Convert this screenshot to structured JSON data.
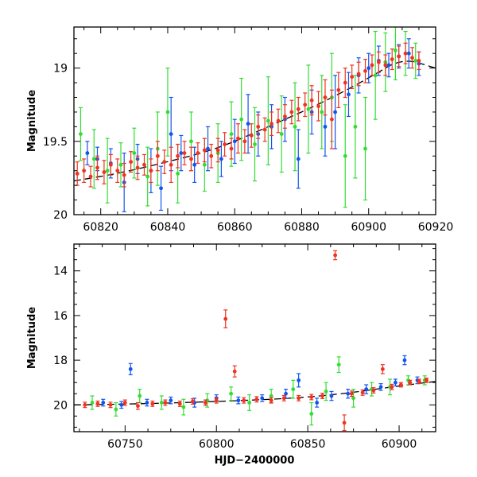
{
  "chart_data": [
    {
      "type": "scatter",
      "title": "",
      "xlabel": "",
      "ylabel": "Magnitude",
      "xlim": [
        60812,
        60920
      ],
      "ylim": [
        20.0,
        18.72
      ],
      "y_inverted": true,
      "x_ticks": [
        60820,
        60840,
        60860,
        60880,
        60900,
        60920
      ],
      "y_ticks": [
        19,
        19.5,
        20
      ],
      "y_tick_labels": [
        "19",
        "19.5",
        "20"
      ],
      "grid": false,
      "legend": "none",
      "model_curve": {
        "style": "dashed black",
        "points": [
          [
            60812,
            19.77
          ],
          [
            60825,
            19.72
          ],
          [
            60840,
            19.64
          ],
          [
            60855,
            19.55
          ],
          [
            60870,
            19.4
          ],
          [
            60885,
            19.25
          ],
          [
            60900,
            19.07
          ],
          [
            60910,
            18.93
          ],
          [
            60920,
            19.0
          ]
        ]
      },
      "series": [
        {
          "color": "#33dd33",
          "points": [
            [
              60814,
              19.45,
              0.18
            ],
            [
              60818,
              19.62,
              0.2
            ],
            [
              60822,
              19.7,
              0.22
            ],
            [
              60826,
              19.66,
              0.15
            ],
            [
              60830,
              19.58,
              0.17
            ],
            [
              60834,
              19.74,
              0.2
            ],
            [
              60837,
              19.55,
              0.25
            ],
            [
              60840,
              19.3,
              0.3
            ],
            [
              60843,
              19.72,
              0.2
            ],
            [
              60847,
              19.5,
              0.2
            ],
            [
              60851,
              19.66,
              0.18
            ],
            [
              60855,
              19.58,
              0.2
            ],
            [
              60859,
              19.45,
              0.22
            ],
            [
              60862,
              19.35,
              0.28
            ],
            [
              60866,
              19.52,
              0.25
            ],
            [
              60870,
              19.36,
              0.3
            ],
            [
              60874,
              19.45,
              0.26
            ],
            [
              60878,
              19.4,
              0.3
            ],
            [
              60882,
              19.28,
              0.3
            ],
            [
              60886,
              19.3,
              0.25
            ],
            [
              60889,
              19.2,
              0.3
            ],
            [
              60893,
              19.6,
              0.35
            ],
            [
              60896,
              19.4,
              0.35
            ],
            [
              60899,
              19.55,
              0.35
            ],
            [
              60902,
              19.05,
              0.3
            ],
            [
              60905,
              18.96,
              0.2
            ],
            [
              60908,
              18.88,
              0.2
            ],
            [
              60911,
              18.9,
              0.15
            ],
            [
              60914,
              18.95,
              0.12
            ]
          ]
        },
        {
          "color": "#1155ee",
          "points": [
            [
              60816,
              19.58,
              0.08
            ],
            [
              60819,
              19.62,
              0.08
            ],
            [
              60823,
              19.65,
              0.1
            ],
            [
              60827,
              19.78,
              0.2
            ],
            [
              60831,
              19.62,
              0.1
            ],
            [
              60835,
              19.7,
              0.15
            ],
            [
              60838,
              19.82,
              0.15
            ],
            [
              60841,
              19.45,
              0.25
            ],
            [
              60844,
              19.58,
              0.12
            ],
            [
              60848,
              19.66,
              0.12
            ],
            [
              60852,
              19.55,
              0.15
            ],
            [
              60856,
              19.62,
              0.12
            ],
            [
              60860,
              19.5,
              0.15
            ],
            [
              60864,
              19.38,
              0.2
            ],
            [
              60867,
              19.45,
              0.15
            ],
            [
              60871,
              19.4,
              0.15
            ],
            [
              60875,
              19.35,
              0.15
            ],
            [
              60879,
              19.62,
              0.2
            ],
            [
              60883,
              19.3,
              0.15
            ],
            [
              60887,
              19.4,
              0.2
            ],
            [
              60890,
              19.3,
              0.25
            ],
            [
              60894,
              19.18,
              0.15
            ],
            [
              60897,
              19.05,
              0.12
            ],
            [
              60900,
              19.0,
              0.1
            ],
            [
              60903,
              18.95,
              0.1
            ],
            [
              60906,
              18.98,
              0.08
            ],
            [
              60909,
              18.92,
              0.08
            ],
            [
              60912,
              18.9,
              0.1
            ],
            [
              60915,
              18.97,
              0.08
            ]
          ]
        },
        {
          "color": "#ee3322",
          "points": [
            [
              60813,
              19.72,
              0.08
            ],
            [
              60815,
              19.7,
              0.08
            ],
            [
              60817,
              19.74,
              0.07
            ],
            [
              60819,
              19.68,
              0.08
            ],
            [
              60821,
              19.71,
              0.08
            ],
            [
              60823,
              19.66,
              0.07
            ],
            [
              60825,
              19.7,
              0.08
            ],
            [
              60827,
              19.73,
              0.08
            ],
            [
              60829,
              19.64,
              0.07
            ],
            [
              60831,
              19.68,
              0.08
            ],
            [
              60833,
              19.66,
              0.07
            ],
            [
              60835,
              19.7,
              0.08
            ],
            [
              60837,
              19.6,
              0.1
            ],
            [
              60839,
              19.64,
              0.08
            ],
            [
              60841,
              19.66,
              0.12
            ],
            [
              60843,
              19.6,
              0.08
            ],
            [
              60845,
              19.58,
              0.08
            ],
            [
              60847,
              19.62,
              0.08
            ],
            [
              60849,
              19.58,
              0.07
            ],
            [
              60851,
              19.56,
              0.08
            ],
            [
              60853,
              19.6,
              0.08
            ],
            [
              60855,
              19.56,
              0.08
            ],
            [
              60857,
              19.52,
              0.08
            ],
            [
              60859,
              19.55,
              0.07
            ],
            [
              60861,
              19.48,
              0.1
            ],
            [
              60863,
              19.5,
              0.08
            ],
            [
              60865,
              19.46,
              0.08
            ],
            [
              60867,
              19.4,
              0.08
            ],
            [
              60869,
              19.42,
              0.08
            ],
            [
              60871,
              19.38,
              0.08
            ],
            [
              60873,
              19.36,
              0.08
            ],
            [
              60875,
              19.33,
              0.08
            ],
            [
              60877,
              19.3,
              0.08
            ],
            [
              60879,
              19.28,
              0.08
            ],
            [
              60881,
              19.25,
              0.08
            ],
            [
              60883,
              19.22,
              0.1
            ],
            [
              60885,
              19.26,
              0.1
            ],
            [
              60887,
              19.2,
              0.12
            ],
            [
              60889,
              19.35,
              0.2
            ],
            [
              60891,
              19.15,
              0.12
            ],
            [
              60893,
              19.1,
              0.1
            ],
            [
              60895,
              19.06,
              0.08
            ],
            [
              60897,
              19.04,
              0.08
            ],
            [
              60899,
              19.02,
              0.08
            ],
            [
              60901,
              18.98,
              0.07
            ],
            [
              60903,
              18.96,
              0.07
            ],
            [
              60905,
              18.98,
              0.07
            ],
            [
              60907,
              18.94,
              0.07
            ],
            [
              60909,
              18.92,
              0.07
            ],
            [
              60911,
              18.9,
              0.07
            ],
            [
              60913,
              18.93,
              0.07
            ],
            [
              60915,
              18.95,
              0.06
            ]
          ]
        }
      ]
    },
    {
      "type": "scatter",
      "title": "",
      "xlabel": "HJD−2400000",
      "ylabel": "Magnitude",
      "xlim": [
        60722,
        60920
      ],
      "ylim": [
        21.2,
        12.8
      ],
      "y_inverted": true,
      "x_ticks": [
        60750,
        60800,
        60850,
        60900
      ],
      "y_ticks": [
        14,
        16,
        18,
        20
      ],
      "y_tick_labels": [
        "14",
        "16",
        "18",
        "20"
      ],
      "grid": false,
      "legend": "none",
      "model_curve": {
        "style": "dashed black",
        "points": [
          [
            60722,
            20.0
          ],
          [
            60760,
            19.95
          ],
          [
            60800,
            19.85
          ],
          [
            60840,
            19.72
          ],
          [
            60870,
            19.5
          ],
          [
            60900,
            19.15
          ],
          [
            60920,
            18.95
          ]
        ]
      },
      "series": [
        {
          "color": "#33dd33",
          "points": [
            [
              60732,
              19.9,
              0.3
            ],
            [
              60745,
              20.2,
              0.3
            ],
            [
              60758,
              19.6,
              0.3
            ],
            [
              60770,
              19.9,
              0.3
            ],
            [
              60782,
              20.1,
              0.35
            ],
            [
              60795,
              19.8,
              0.3
            ],
            [
              60808,
              19.5,
              0.3
            ],
            [
              60818,
              19.9,
              0.35
            ],
            [
              60830,
              19.6,
              0.3
            ],
            [
              60842,
              19.3,
              0.4
            ],
            [
              60852,
              20.4,
              0.5
            ],
            [
              60860,
              19.4,
              0.4
            ],
            [
              60867,
              18.2,
              0.35
            ],
            [
              60875,
              19.7,
              0.4
            ],
            [
              60885,
              19.3,
              0.3
            ],
            [
              60895,
              19.2,
              0.35
            ],
            [
              60905,
              18.9,
              0.2
            ],
            [
              60914,
              18.9,
              0.2
            ]
          ]
        },
        {
          "color": "#1155ee",
          "points": [
            [
              60738,
              19.9,
              0.15
            ],
            [
              60748,
              20.0,
              0.15
            ],
            [
              60753,
              18.4,
              0.25
            ],
            [
              60762,
              19.9,
              0.15
            ],
            [
              60775,
              19.8,
              0.15
            ],
            [
              60788,
              19.9,
              0.2
            ],
            [
              60800,
              19.7,
              0.15
            ],
            [
              60812,
              19.8,
              0.15
            ],
            [
              60825,
              19.7,
              0.15
            ],
            [
              60838,
              19.5,
              0.2
            ],
            [
              60845,
              18.9,
              0.3
            ],
            [
              60855,
              19.9,
              0.2
            ],
            [
              60863,
              19.6,
              0.2
            ],
            [
              60872,
              19.5,
              0.2
            ],
            [
              60882,
              19.3,
              0.2
            ],
            [
              60890,
              19.2,
              0.15
            ],
            [
              60898,
              19.0,
              0.15
            ],
            [
              60903,
              18.0,
              0.2
            ],
            [
              60910,
              18.9,
              0.15
            ]
          ]
        },
        {
          "color": "#ee3322",
          "points": [
            [
              60728,
              20.0,
              0.12
            ],
            [
              60735,
              19.95,
              0.12
            ],
            [
              60742,
              20.0,
              0.12
            ],
            [
              60750,
              19.9,
              0.12
            ],
            [
              60757,
              20.05,
              0.15
            ],
            [
              60765,
              19.95,
              0.12
            ],
            [
              60772,
              19.9,
              0.12
            ],
            [
              60780,
              19.95,
              0.12
            ],
            [
              60787,
              19.85,
              0.12
            ],
            [
              60794,
              19.9,
              0.12
            ],
            [
              60800,
              19.8,
              0.12
            ],
            [
              60805,
              16.15,
              0.4
            ],
            [
              60810,
              18.5,
              0.25
            ],
            [
              60815,
              19.8,
              0.12
            ],
            [
              60822,
              19.75,
              0.12
            ],
            [
              60830,
              19.8,
              0.12
            ],
            [
              60837,
              19.7,
              0.12
            ],
            [
              60845,
              19.7,
              0.12
            ],
            [
              60852,
              19.65,
              0.12
            ],
            [
              60858,
              19.6,
              0.12
            ],
            [
              60865,
              13.3,
              0.2
            ],
            [
              60870,
              20.8,
              0.35
            ],
            [
              60874,
              19.5,
              0.12
            ],
            [
              60880,
              19.45,
              0.12
            ],
            [
              60886,
              19.35,
              0.12
            ],
            [
              60891,
              18.4,
              0.2
            ],
            [
              60896,
              19.2,
              0.12
            ],
            [
              60901,
              19.1,
              0.1
            ],
            [
              60906,
              19.0,
              0.1
            ],
            [
              60911,
              18.95,
              0.1
            ],
            [
              60915,
              18.9,
              0.1
            ]
          ]
        }
      ]
    }
  ]
}
